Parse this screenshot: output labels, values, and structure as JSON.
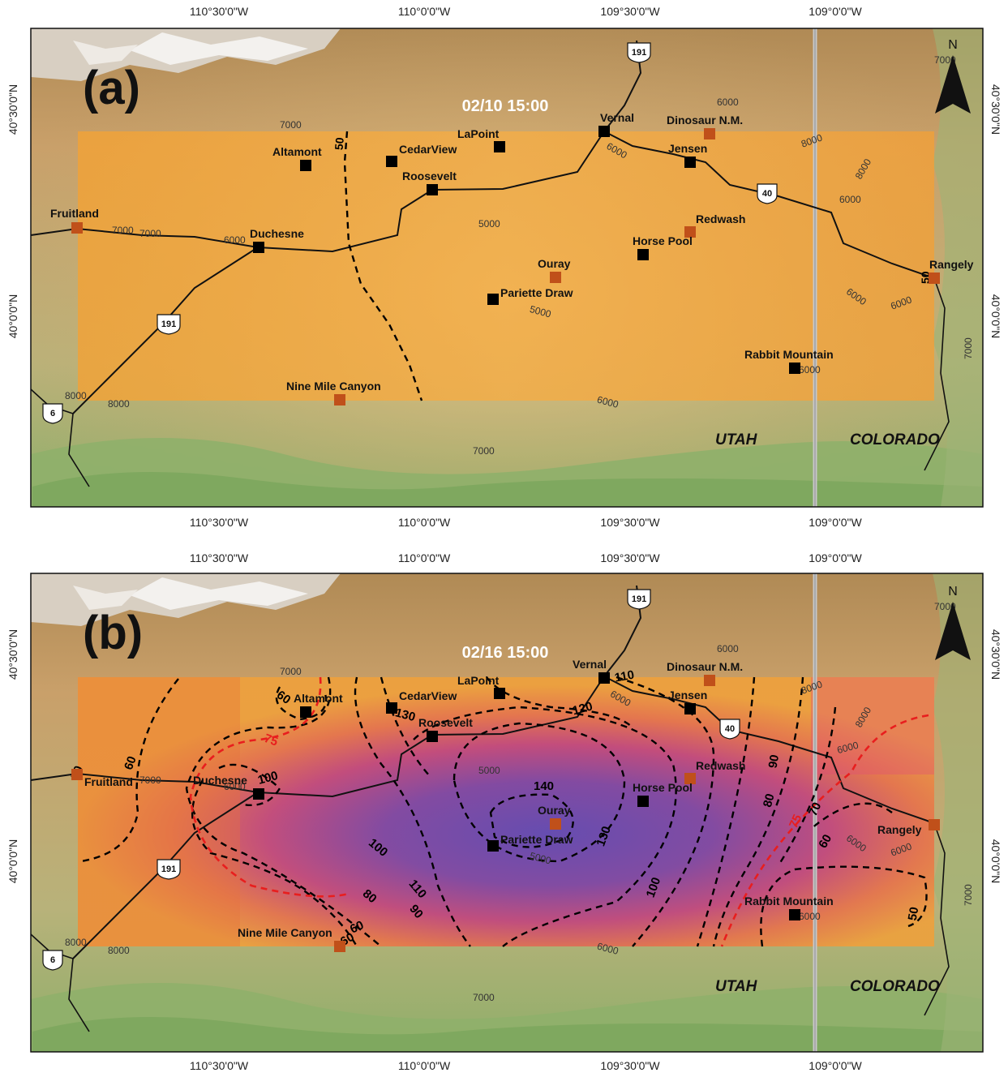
{
  "panels": [
    {
      "id": "a",
      "letter": "(a)",
      "timestamp": "02/10 15:00",
      "stations": [
        {
          "name": "Altamont",
          "type": "black"
        },
        {
          "name": "CedarView",
          "type": "black"
        },
        {
          "name": "LaPoint",
          "type": "black"
        },
        {
          "name": "Vernal",
          "type": "black"
        },
        {
          "name": "Dinosaur N.M.",
          "type": "orange"
        },
        {
          "name": "Jensen",
          "type": "black"
        },
        {
          "name": "Roosevelt",
          "type": "black"
        },
        {
          "name": "Fruitland",
          "type": "orange"
        },
        {
          "name": "Duchesne",
          "type": "black"
        },
        {
          "name": "Redwash",
          "type": "orange"
        },
        {
          "name": "Horse Pool",
          "type": "black"
        },
        {
          "name": "Ouray",
          "type": "orange"
        },
        {
          "name": "Pariette Draw",
          "type": "black"
        },
        {
          "name": "Rangely",
          "type": "orange"
        },
        {
          "name": "Rabbit Mountain",
          "type": "black"
        },
        {
          "name": "Nine Mile Canyon",
          "type": "orange"
        }
      ],
      "contour_labels": [
        "50",
        "50"
      ]
    },
    {
      "id": "b",
      "letter": "(b)",
      "timestamp": "02/16 15:00",
      "stations": [
        {
          "name": "Altamont",
          "type": "black"
        },
        {
          "name": "CedarView",
          "type": "black"
        },
        {
          "name": "LaPoint",
          "type": "black"
        },
        {
          "name": "Vernal",
          "type": "black"
        },
        {
          "name": "Dinosaur N.M.",
          "type": "orange"
        },
        {
          "name": "Jensen",
          "type": "black"
        },
        {
          "name": "Roosevelt",
          "type": "black"
        },
        {
          "name": "Fruitland",
          "type": "orange"
        },
        {
          "name": "Duchesne",
          "type": "black"
        },
        {
          "name": "Redwash",
          "type": "orange"
        },
        {
          "name": "Horse Pool",
          "type": "black"
        },
        {
          "name": "Ouray",
          "type": "orange"
        },
        {
          "name": "Pariette Draw",
          "type": "black"
        },
        {
          "name": "Rangely",
          "type": "orange"
        },
        {
          "name": "Rabbit Mountain",
          "type": "black"
        },
        {
          "name": "Nine Mile Canyon",
          "type": "orange"
        }
      ],
      "contour_labels": [
        "60",
        "50",
        "60",
        "75",
        "100",
        "60",
        "130",
        "120",
        "110",
        "140",
        "130",
        "100",
        "110",
        "90",
        "80",
        "60",
        "100",
        "90",
        "80",
        "75",
        "70",
        "60",
        "50"
      ]
    }
  ],
  "axes": {
    "lon_labels": [
      "110°30'0\"W",
      "110°0'0\"W",
      "109°30'0\"W",
      "109°0'0\"W"
    ],
    "lat_labels": [
      "40°30'0\"N",
      "40°0'0\"N"
    ]
  },
  "map_labels": {
    "state_utah": "UTAH",
    "state_colorado": "COLORADO",
    "north": "N",
    "highway_191": "191",
    "highway_40": "40",
    "highway_6": "6"
  },
  "elevation_labels": [
    "7000",
    "6000",
    "8000",
    "8000",
    "6000",
    "6000",
    "6000",
    "5000",
    "5000",
    "6000",
    "6000",
    "7000",
    "6000",
    "8000",
    "8000",
    "6000",
    "7000",
    "7000",
    "7000",
    "7000",
    "6000",
    "7000"
  ],
  "colors": {
    "background_overlay_low": "#f0a838",
    "overlay_high": "#6a3db8",
    "overlay_mid": "#d8447a",
    "station_black": "#000000",
    "station_orange": "#c0501a",
    "contour_dash": "#000000",
    "contour_75": "#e81e1e",
    "terrain_green": "#8fb86a",
    "terrain_brown": "#a07040",
    "terrain_snow": "#f2f2f2"
  }
}
